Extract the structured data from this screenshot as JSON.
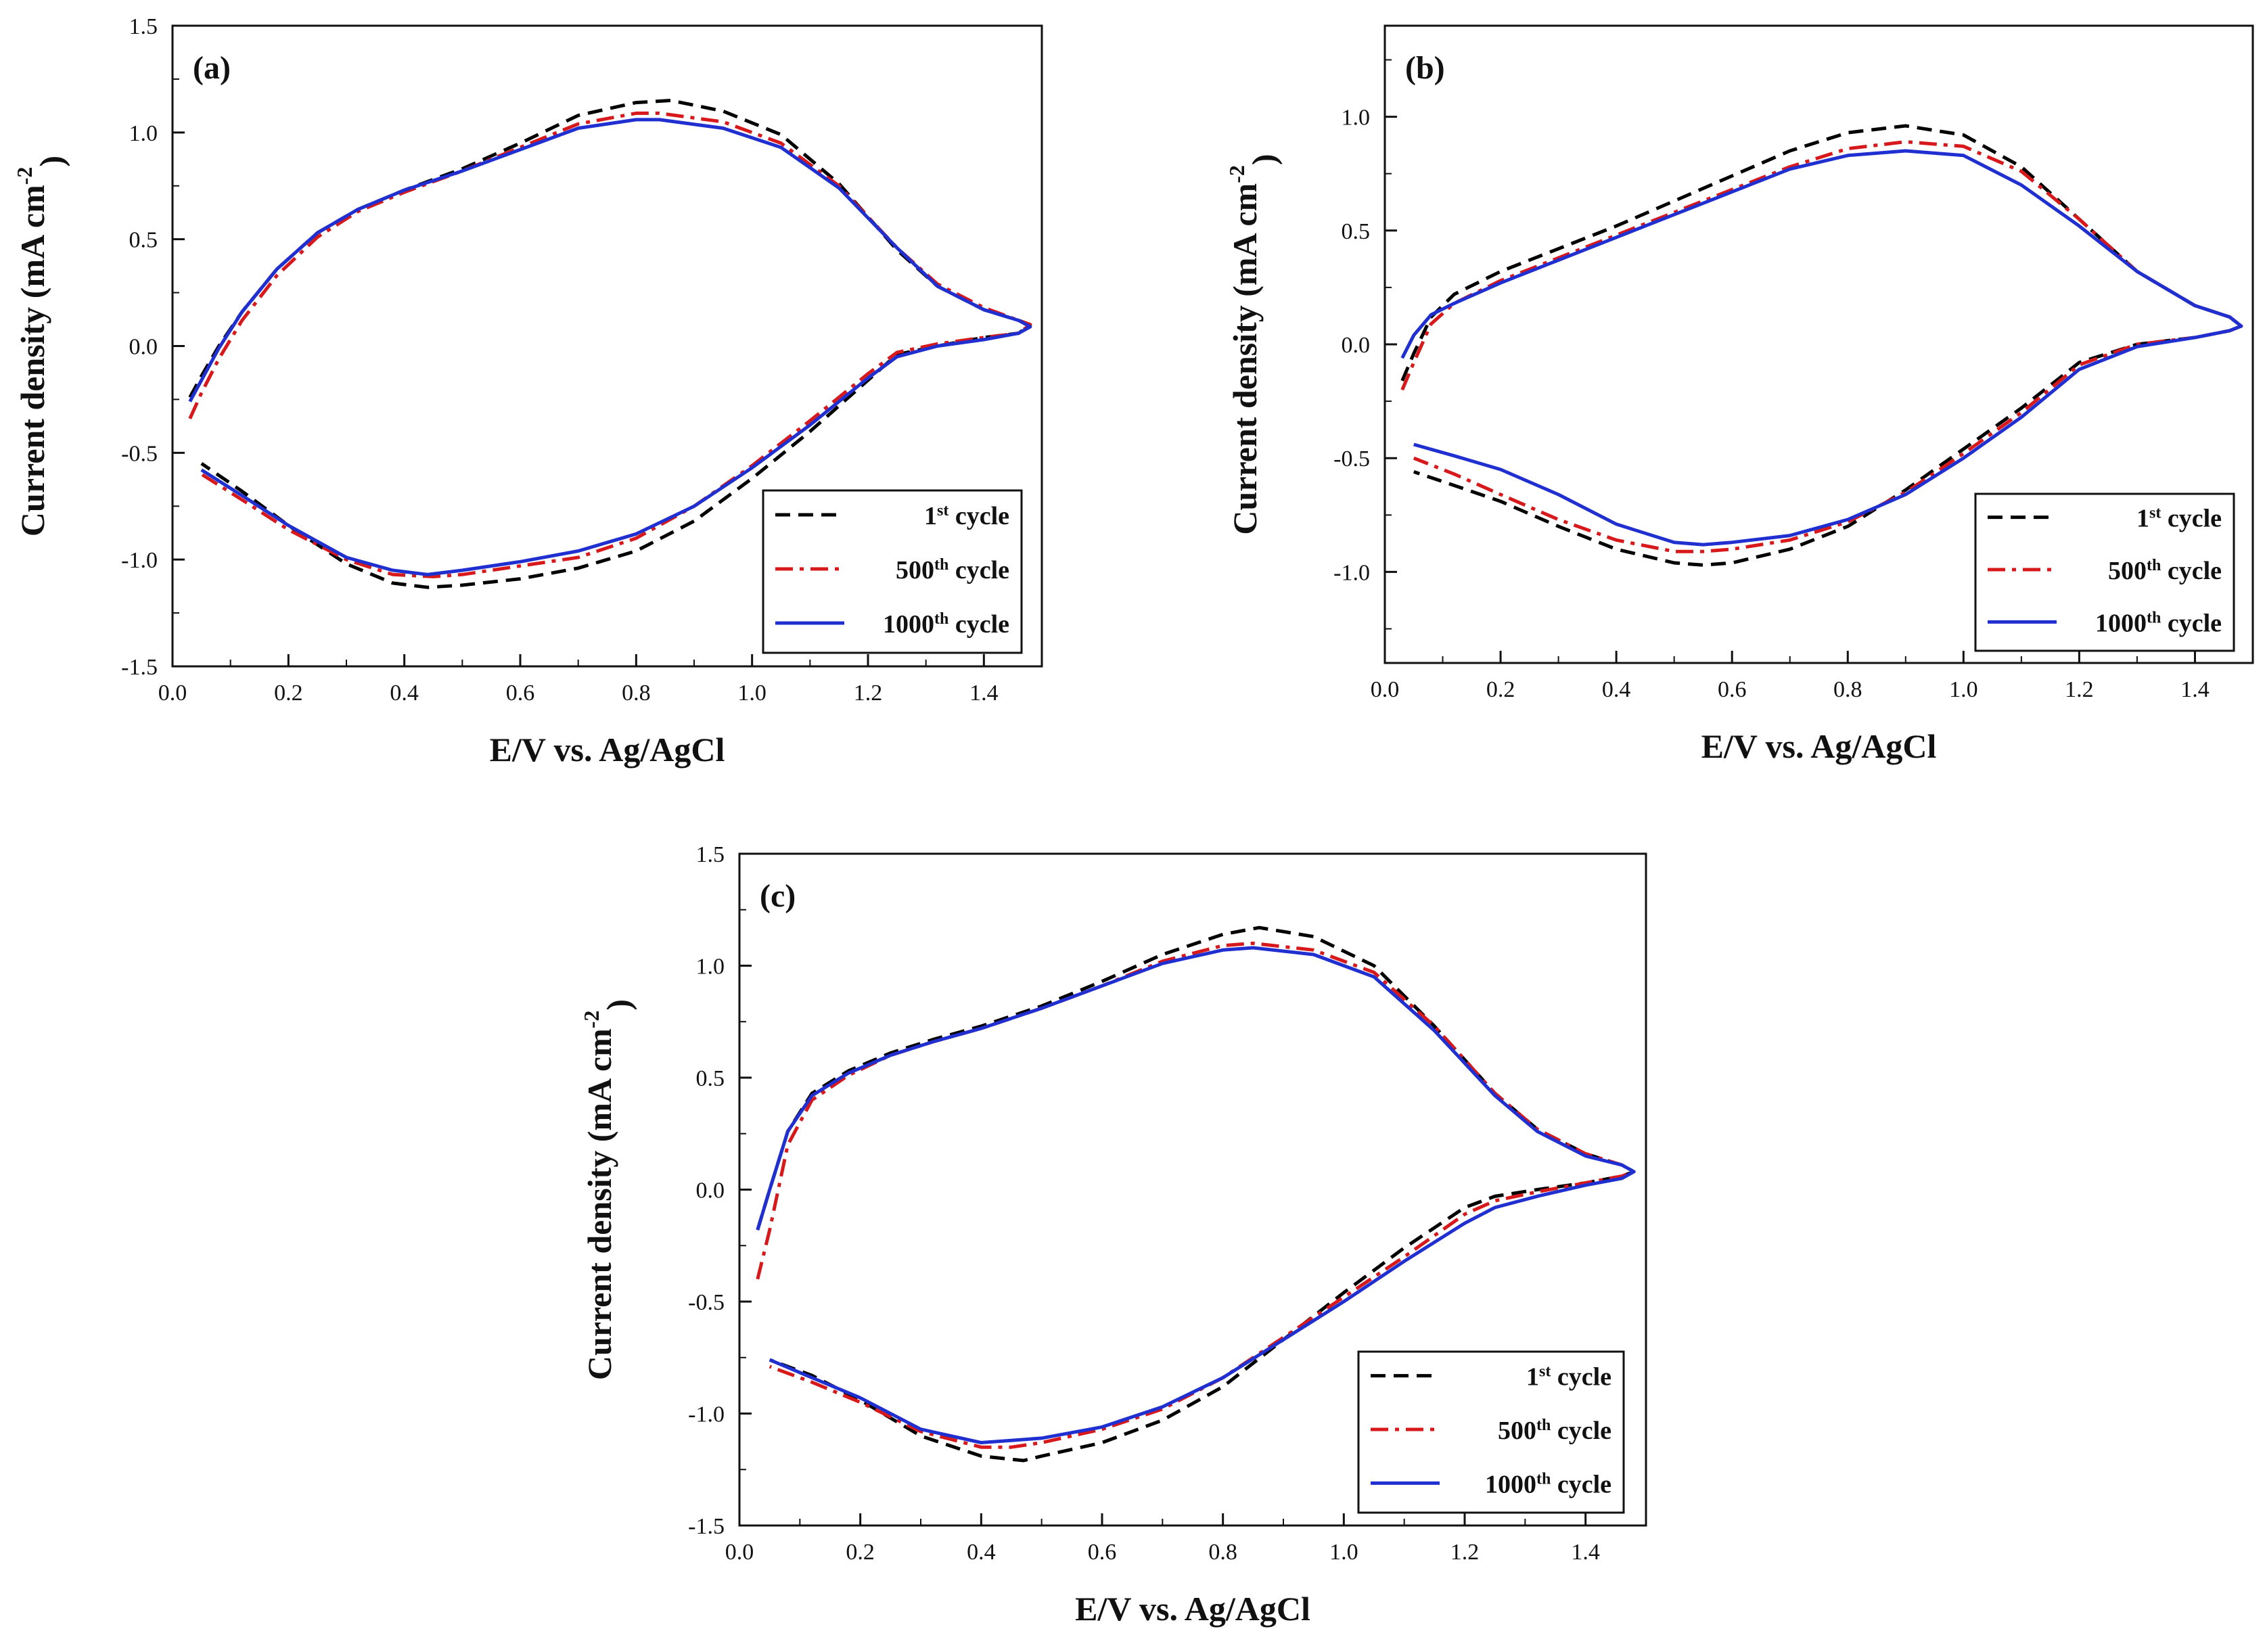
{
  "chart_data": [
    {
      "type": "line",
      "panel_label": "(a)",
      "xlabel": "E/V vs. Ag/AgCl",
      "ylabel_main": "Current density (mA cm",
      "ylabel_sup": "-2",
      "ylabel_close": ")",
      "xlim": [
        0.0,
        1.5
      ],
      "ylim": [
        -1.5,
        1.5
      ],
      "xticks": [
        0.0,
        0.2,
        0.4,
        0.6,
        0.8,
        1.0,
        1.2,
        1.4
      ],
      "xtick_labels": [
        "0.0",
        "0.2",
        "0.4",
        "0.6",
        "0.8",
        "1.0",
        "1.2",
        "1.4"
      ],
      "yticks": [
        -1.5,
        -1.0,
        -0.5,
        0.0,
        0.5,
        1.0,
        1.5
      ],
      "ytick_labels": [
        "-1.5",
        "-1.0",
        "-0.5",
        "0.0",
        "0.5",
        "1.0",
        "1.5"
      ],
      "legend_position": "bottom-right",
      "series": [
        {
          "name": "1st cycle",
          "label_prefix": "1",
          "label_sup": "st",
          "label_suffix": " cycle",
          "color": "#000000",
          "style": "dashed",
          "x": [
            0.03,
            0.05,
            0.08,
            0.12,
            0.18,
            0.25,
            0.32,
            0.4,
            0.5,
            0.6,
            0.7,
            0.8,
            0.86,
            0.95,
            1.05,
            1.15,
            1.25,
            1.32,
            1.4,
            1.46,
            1.48,
            1.46,
            1.4,
            1.32,
            1.25,
            1.2,
            1.1,
            1.0,
            0.9,
            0.8,
            0.7,
            0.6,
            0.5,
            0.44,
            0.38,
            0.3,
            0.2,
            0.12,
            0.05
          ],
          "y": [
            -0.24,
            -0.14,
            0.0,
            0.16,
            0.36,
            0.53,
            0.64,
            0.73,
            0.83,
            0.95,
            1.08,
            1.14,
            1.15,
            1.1,
            0.99,
            0.76,
            0.45,
            0.28,
            0.17,
            0.12,
            0.1,
            0.06,
            0.04,
            0.0,
            -0.04,
            -0.16,
            -0.4,
            -0.62,
            -0.82,
            -0.96,
            -1.04,
            -1.09,
            -1.12,
            -1.13,
            -1.11,
            -1.02,
            -0.84,
            -0.68,
            -0.55
          ]
        },
        {
          "name": "500th cycle",
          "label_prefix": "500",
          "label_sup": "th",
          "label_suffix": " cycle",
          "color": "#d7191c",
          "style": "dashdot",
          "x": [
            0.03,
            0.05,
            0.08,
            0.12,
            0.18,
            0.25,
            0.32,
            0.4,
            0.5,
            0.6,
            0.7,
            0.8,
            0.84,
            0.95,
            1.05,
            1.15,
            1.25,
            1.32,
            1.4,
            1.46,
            1.48,
            1.46,
            1.4,
            1.32,
            1.25,
            1.2,
            1.1,
            1.0,
            0.9,
            0.8,
            0.7,
            0.6,
            0.5,
            0.45,
            0.38,
            0.3,
            0.2,
            0.12,
            0.05
          ],
          "y": [
            -0.34,
            -0.22,
            -0.06,
            0.12,
            0.33,
            0.51,
            0.63,
            0.72,
            0.82,
            0.93,
            1.04,
            1.09,
            1.09,
            1.05,
            0.95,
            0.75,
            0.46,
            0.29,
            0.18,
            0.12,
            0.1,
            0.06,
            0.04,
            0.01,
            -0.03,
            -0.13,
            -0.35,
            -0.56,
            -0.75,
            -0.9,
            -0.99,
            -1.03,
            -1.07,
            -1.08,
            -1.07,
            -1.0,
            -0.86,
            -0.72,
            -0.6
          ]
        },
        {
          "name": "1000th cycle",
          "label_prefix": "1000",
          "label_sup": "th",
          "label_suffix": " cycle",
          "color": "#1f2fd0",
          "style": "solid",
          "x": [
            0.03,
            0.05,
            0.08,
            0.12,
            0.18,
            0.25,
            0.32,
            0.4,
            0.5,
            0.6,
            0.7,
            0.8,
            0.84,
            0.95,
            1.05,
            1.15,
            1.25,
            1.32,
            1.4,
            1.46,
            1.48,
            1.46,
            1.4,
            1.32,
            1.25,
            1.2,
            1.1,
            1.0,
            0.9,
            0.8,
            0.7,
            0.6,
            0.5,
            0.44,
            0.38,
            0.3,
            0.2,
            0.12,
            0.05
          ],
          "y": [
            -0.26,
            -0.16,
            -0.01,
            0.16,
            0.36,
            0.53,
            0.64,
            0.73,
            0.82,
            0.92,
            1.02,
            1.06,
            1.06,
            1.02,
            0.93,
            0.74,
            0.46,
            0.28,
            0.17,
            0.12,
            0.09,
            0.06,
            0.03,
            0.0,
            -0.05,
            -0.15,
            -0.37,
            -0.57,
            -0.75,
            -0.88,
            -0.96,
            -1.01,
            -1.05,
            -1.07,
            -1.05,
            -0.99,
            -0.84,
            -0.7,
            -0.58
          ]
        }
      ]
    },
    {
      "type": "line",
      "panel_label": "(b)",
      "xlabel": "E/V vs. Ag/AgCl",
      "ylabel_main": "Current density (mA cm",
      "ylabel_sup": "-2",
      "ylabel_close": ")",
      "xlim": [
        0.0,
        1.5
      ],
      "ylim": [
        -1.4,
        1.4
      ],
      "xticks": [
        0.0,
        0.2,
        0.4,
        0.6,
        0.8,
        1.0,
        1.2,
        1.4
      ],
      "xtick_labels": [
        "0.0",
        "0.2",
        "0.4",
        "0.6",
        "0.8",
        "1.0",
        "1.2",
        "1.4"
      ],
      "yticks": [
        -1.0,
        -0.5,
        0.0,
        0.5,
        1.0
      ],
      "ytick_labels": [
        "-1.0",
        "-0.5",
        "0.0",
        "0.5",
        "1.0"
      ],
      "legend_position": "bottom-right",
      "series": [
        {
          "name": "1st cycle",
          "label_prefix": "1",
          "label_sup": "st",
          "label_suffix": " cycle",
          "color": "#000000",
          "style": "dashed",
          "x": [
            0.03,
            0.05,
            0.08,
            0.12,
            0.2,
            0.3,
            0.4,
            0.5,
            0.6,
            0.7,
            0.8,
            0.9,
            1.0,
            1.1,
            1.2,
            1.3,
            1.4,
            1.46,
            1.48,
            1.46,
            1.4,
            1.3,
            1.2,
            1.1,
            1.0,
            0.9,
            0.8,
            0.7,
            0.6,
            0.55,
            0.5,
            0.4,
            0.3,
            0.2,
            0.12,
            0.05
          ],
          "y": [
            -0.16,
            -0.04,
            0.12,
            0.22,
            0.32,
            0.42,
            0.52,
            0.63,
            0.74,
            0.85,
            0.93,
            0.96,
            0.92,
            0.78,
            0.55,
            0.32,
            0.17,
            0.12,
            0.08,
            0.06,
            0.03,
            0.0,
            -0.08,
            -0.28,
            -0.46,
            -0.64,
            -0.8,
            -0.9,
            -0.96,
            -0.97,
            -0.96,
            -0.9,
            -0.8,
            -0.69,
            -0.62,
            -0.56
          ]
        },
        {
          "name": "500th cycle",
          "label_prefix": "500",
          "label_sup": "th",
          "label_suffix": " cycle",
          "color": "#d7191c",
          "style": "dashdot",
          "x": [
            0.03,
            0.05,
            0.08,
            0.12,
            0.2,
            0.3,
            0.4,
            0.5,
            0.6,
            0.7,
            0.8,
            0.9,
            1.0,
            1.1,
            1.2,
            1.3,
            1.4,
            1.46,
            1.48,
            1.46,
            1.4,
            1.3,
            1.2,
            1.1,
            1.0,
            0.9,
            0.8,
            0.7,
            0.6,
            0.55,
            0.5,
            0.4,
            0.3,
            0.2,
            0.12,
            0.05
          ],
          "y": [
            -0.2,
            -0.08,
            0.09,
            0.18,
            0.28,
            0.38,
            0.48,
            0.58,
            0.68,
            0.78,
            0.86,
            0.89,
            0.87,
            0.76,
            0.55,
            0.32,
            0.17,
            0.12,
            0.08,
            0.06,
            0.03,
            0.0,
            -0.09,
            -0.3,
            -0.48,
            -0.65,
            -0.78,
            -0.86,
            -0.9,
            -0.91,
            -0.91,
            -0.86,
            -0.77,
            -0.66,
            -0.57,
            -0.5
          ]
        },
        {
          "name": "1000th cycle",
          "label_prefix": "1000",
          "label_sup": "th",
          "label_suffix": " cycle",
          "color": "#1f2fd0",
          "style": "solid",
          "x": [
            0.03,
            0.05,
            0.08,
            0.12,
            0.2,
            0.3,
            0.4,
            0.5,
            0.6,
            0.7,
            0.8,
            0.9,
            1.0,
            1.1,
            1.2,
            1.3,
            1.4,
            1.46,
            1.48,
            1.46,
            1.4,
            1.3,
            1.2,
            1.1,
            1.0,
            0.9,
            0.8,
            0.7,
            0.6,
            0.55,
            0.5,
            0.4,
            0.3,
            0.2,
            0.12,
            0.05
          ],
          "y": [
            -0.06,
            0.04,
            0.13,
            0.18,
            0.27,
            0.37,
            0.47,
            0.57,
            0.67,
            0.77,
            0.83,
            0.85,
            0.83,
            0.7,
            0.52,
            0.32,
            0.17,
            0.12,
            0.08,
            0.06,
            0.03,
            -0.01,
            -0.11,
            -0.32,
            -0.5,
            -0.66,
            -0.77,
            -0.84,
            -0.87,
            -0.88,
            -0.87,
            -0.79,
            -0.66,
            -0.55,
            -0.49,
            -0.44
          ]
        }
      ]
    },
    {
      "type": "line",
      "panel_label": "(c)",
      "xlabel": "E/V vs. Ag/AgCl",
      "ylabel_main": "Current density (mA cm",
      "ylabel_sup": "-2",
      "ylabel_close": ")",
      "xlim": [
        0.0,
        1.5
      ],
      "ylim": [
        -1.5,
        1.5
      ],
      "xticks": [
        0.0,
        0.2,
        0.4,
        0.6,
        0.8,
        1.0,
        1.2,
        1.4
      ],
      "xtick_labels": [
        "0.0",
        "0.2",
        "0.4",
        "0.6",
        "0.8",
        "1.0",
        "1.2",
        "1.4"
      ],
      "yticks": [
        -1.5,
        -1.0,
        -0.5,
        0.0,
        0.5,
        1.0,
        1.5
      ],
      "ytick_labels": [
        "-1.5",
        "-1.0",
        "-0.5",
        "0.0",
        "0.5",
        "1.0",
        "1.5"
      ],
      "legend_position": "bottom-right",
      "series": [
        {
          "name": "1st cycle",
          "label_prefix": "1",
          "label_sup": "st",
          "label_suffix": " cycle",
          "color": "#000000",
          "style": "dashed",
          "x": [
            0.03,
            0.05,
            0.08,
            0.12,
            0.18,
            0.25,
            0.32,
            0.4,
            0.5,
            0.6,
            0.7,
            0.8,
            0.86,
            0.95,
            1.05,
            1.15,
            1.25,
            1.32,
            1.4,
            1.46,
            1.48,
            1.46,
            1.4,
            1.32,
            1.25,
            1.2,
            1.1,
            1.0,
            0.9,
            0.8,
            0.7,
            0.6,
            0.5,
            0.47,
            0.4,
            0.3,
            0.2,
            0.12,
            0.05
          ],
          "y": [
            -0.18,
            0.0,
            0.26,
            0.43,
            0.53,
            0.61,
            0.67,
            0.73,
            0.82,
            0.93,
            1.05,
            1.14,
            1.17,
            1.13,
            1.0,
            0.73,
            0.43,
            0.27,
            0.16,
            0.11,
            0.08,
            0.06,
            0.03,
            0.0,
            -0.03,
            -0.08,
            -0.26,
            -0.46,
            -0.67,
            -0.88,
            -1.03,
            -1.13,
            -1.19,
            -1.21,
            -1.19,
            -1.1,
            -0.94,
            -0.83,
            -0.76
          ]
        },
        {
          "name": "500th cycle",
          "label_prefix": "500",
          "label_sup": "th",
          "label_suffix": " cycle",
          "color": "#d7191c",
          "style": "dashdot",
          "x": [
            0.03,
            0.05,
            0.08,
            0.12,
            0.18,
            0.25,
            0.32,
            0.4,
            0.5,
            0.6,
            0.7,
            0.8,
            0.85,
            0.95,
            1.05,
            1.15,
            1.25,
            1.32,
            1.4,
            1.46,
            1.48,
            1.46,
            1.4,
            1.32,
            1.25,
            1.2,
            1.1,
            1.0,
            0.9,
            0.8,
            0.7,
            0.6,
            0.5,
            0.45,
            0.4,
            0.3,
            0.2,
            0.12,
            0.05
          ],
          "y": [
            -0.4,
            -0.18,
            0.2,
            0.4,
            0.51,
            0.6,
            0.66,
            0.72,
            0.81,
            0.91,
            1.02,
            1.09,
            1.1,
            1.07,
            0.97,
            0.73,
            0.43,
            0.27,
            0.16,
            0.11,
            0.08,
            0.06,
            0.03,
            -0.01,
            -0.05,
            -0.11,
            -0.3,
            -0.48,
            -0.66,
            -0.84,
            -0.98,
            -1.07,
            -1.13,
            -1.15,
            -1.15,
            -1.08,
            -0.95,
            -0.86,
            -0.79
          ]
        },
        {
          "name": "1000th cycle",
          "label_prefix": "1000",
          "label_sup": "th",
          "label_suffix": " cycle",
          "color": "#1f2fd0",
          "style": "solid",
          "x": [
            0.03,
            0.05,
            0.08,
            0.12,
            0.18,
            0.25,
            0.32,
            0.4,
            0.5,
            0.6,
            0.7,
            0.8,
            0.85,
            0.95,
            1.05,
            1.15,
            1.25,
            1.32,
            1.4,
            1.46,
            1.48,
            1.46,
            1.4,
            1.32,
            1.25,
            1.2,
            1.1,
            1.0,
            0.9,
            0.8,
            0.7,
            0.6,
            0.5,
            0.45,
            0.4,
            0.3,
            0.2,
            0.12,
            0.05
          ],
          "y": [
            -0.18,
            0.0,
            0.26,
            0.42,
            0.52,
            0.6,
            0.66,
            0.72,
            0.81,
            0.91,
            1.01,
            1.07,
            1.08,
            1.05,
            0.95,
            0.71,
            0.42,
            0.26,
            0.15,
            0.11,
            0.08,
            0.05,
            0.02,
            -0.03,
            -0.08,
            -0.15,
            -0.32,
            -0.5,
            -0.67,
            -0.84,
            -0.97,
            -1.06,
            -1.11,
            -1.12,
            -1.13,
            -1.07,
            -0.93,
            -0.84,
            -0.76
          ]
        }
      ]
    }
  ]
}
